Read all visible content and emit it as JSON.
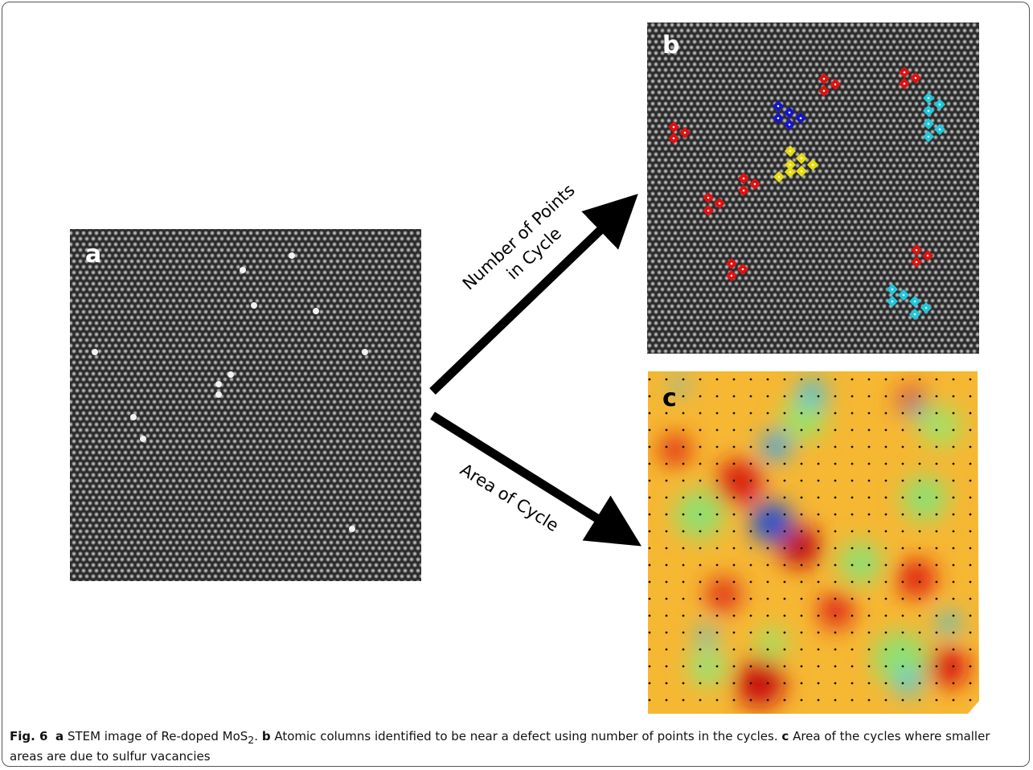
{
  "figure": {
    "panels": [
      {
        "label": "a"
      },
      {
        "label": "b"
      },
      {
        "label": "c"
      }
    ],
    "arrows": [
      {
        "label_lines": [
          "Number of Points",
          "in Cycle"
        ]
      },
      {
        "label": "Area of Cycle"
      }
    ]
  },
  "caption": {
    "figure_label": "Fig. 6",
    "parts": [
      {
        "label": "a",
        "text": "STEM image of Re-doped MoS",
        "subscript": "2",
        "tail": "."
      },
      {
        "label": "b",
        "text": "Atomic columns identified to be near a defect using number of points in the cycles."
      },
      {
        "label": "c",
        "text": "Area of the cycles where smaller areas are due to sulfur vacancies"
      }
    ]
  }
}
